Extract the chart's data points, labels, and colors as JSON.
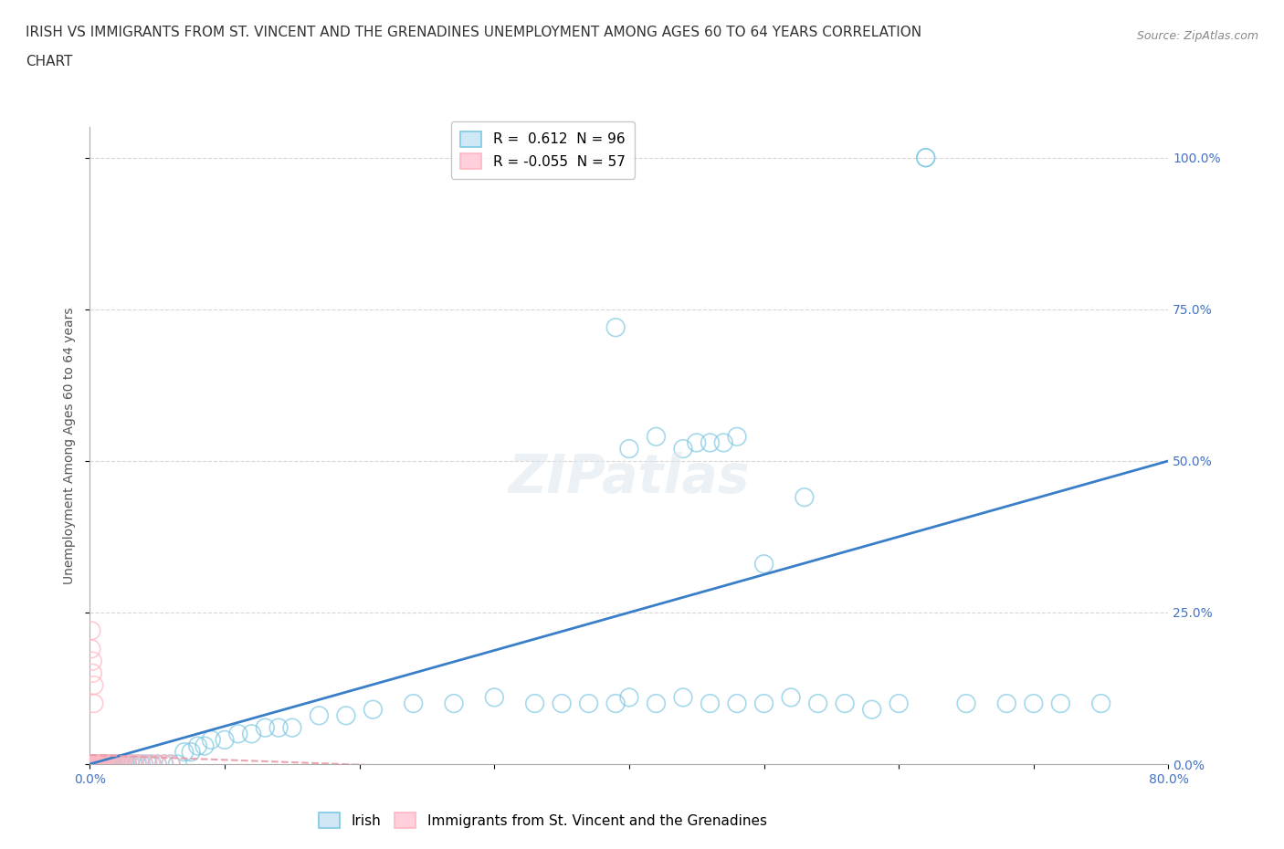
{
  "title_line1": "IRISH VS IMMIGRANTS FROM ST. VINCENT AND THE GRENADINES UNEMPLOYMENT AMONG AGES 60 TO 64 YEARS CORRELATION",
  "title_line2": "CHART",
  "source": "Source: ZipAtlas.com",
  "ylabel": "Unemployment Among Ages 60 to 64 years",
  "xlim": [
    0.0,
    0.8
  ],
  "ylim": [
    0.0,
    1.05
  ],
  "ytick_positions": [
    0.0,
    0.25,
    0.5,
    0.75,
    1.0
  ],
  "ytick_labels": [
    "0.0%",
    "25.0%",
    "50.0%",
    "75.0%",
    "100.0%"
  ],
  "xtick_positions": [
    0.0,
    0.1,
    0.2,
    0.3,
    0.4,
    0.5,
    0.6,
    0.7,
    0.8
  ],
  "xtick_labels": [
    "0.0%",
    "",
    "",
    "",
    "",
    "",
    "",
    "",
    "80.0%"
  ],
  "legend_irish_R": "0.612",
  "legend_irish_N": "96",
  "legend_svg_R": "-0.055",
  "legend_svg_N": "57",
  "blue_scatter_color": "#7ec8e3",
  "pink_scatter_color": "#ffb6c1",
  "blue_line_color": "#3a7ec8",
  "pink_line_color": "#e89aaa",
  "tick_color": "#4472c4",
  "grid_color": "#cccccc",
  "background_color": "#ffffff",
  "title_fontsize": 11,
  "axis_label_fontsize": 10,
  "tick_fontsize": 10,
  "legend_fontsize": 11,
  "source_fontsize": 9,
  "blue_line_x": [
    0.0,
    0.8
  ],
  "blue_line_y": [
    0.0,
    0.5
  ],
  "pink_line_x": [
    0.0,
    0.25
  ],
  "pink_line_y": [
    0.015,
    -0.005
  ],
  "irish_scatter_x": [
    0.0,
    0.0,
    0.001,
    0.001,
    0.001,
    0.002,
    0.002,
    0.002,
    0.003,
    0.003,
    0.004,
    0.004,
    0.005,
    0.005,
    0.006,
    0.006,
    0.007,
    0.007,
    0.008,
    0.008,
    0.009,
    0.01,
    0.01,
    0.011,
    0.012,
    0.013,
    0.014,
    0.015,
    0.016,
    0.017,
    0.018,
    0.02,
    0.022,
    0.024,
    0.026,
    0.028,
    0.03,
    0.032,
    0.035,
    0.038,
    0.04,
    0.043,
    0.046,
    0.05,
    0.055,
    0.06,
    0.065,
    0.07,
    0.075,
    0.08,
    0.085,
    0.09,
    0.1,
    0.11,
    0.12,
    0.13,
    0.14,
    0.15,
    0.17,
    0.19,
    0.21,
    0.24,
    0.27,
    0.3,
    0.33,
    0.35,
    0.37,
    0.39,
    0.4,
    0.42,
    0.44,
    0.46,
    0.48,
    0.5,
    0.52,
    0.54,
    0.56,
    0.58,
    0.6,
    0.62,
    0.62,
    0.65,
    0.68,
    0.7,
    0.72,
    0.75,
    0.4,
    0.42,
    0.44,
    0.46,
    0.48,
    0.39,
    0.45,
    0.47,
    0.5,
    0.53
  ],
  "irish_scatter_y": [
    0.0,
    0.0,
    0.0,
    0.0,
    0.0,
    0.0,
    0.0,
    0.0,
    0.0,
    0.0,
    0.0,
    0.0,
    0.0,
    0.0,
    0.0,
    0.0,
    0.0,
    0.0,
    0.0,
    0.0,
    0.0,
    0.0,
    0.0,
    0.0,
    0.0,
    0.0,
    0.0,
    0.0,
    0.0,
    0.0,
    0.0,
    0.0,
    0.0,
    0.0,
    0.0,
    0.0,
    0.0,
    0.0,
    0.0,
    0.0,
    0.0,
    0.0,
    0.0,
    0.0,
    0.0,
    0.0,
    0.0,
    0.02,
    0.02,
    0.03,
    0.03,
    0.04,
    0.04,
    0.05,
    0.05,
    0.06,
    0.06,
    0.06,
    0.08,
    0.08,
    0.09,
    0.1,
    0.1,
    0.11,
    0.1,
    0.1,
    0.1,
    0.1,
    0.11,
    0.1,
    0.11,
    0.1,
    0.1,
    0.1,
    0.11,
    0.1,
    0.1,
    0.09,
    0.1,
    1.0,
    1.0,
    0.1,
    0.1,
    0.1,
    0.1,
    0.1,
    0.52,
    0.54,
    0.52,
    0.53,
    0.54,
    0.72,
    0.53,
    0.53,
    0.33,
    0.44
  ],
  "svg_scatter_x": [
    0.0,
    0.0,
    0.0,
    0.0,
    0.0,
    0.0,
    0.001,
    0.001,
    0.001,
    0.001,
    0.001,
    0.002,
    0.002,
    0.002,
    0.002,
    0.003,
    0.003,
    0.003,
    0.003,
    0.004,
    0.004,
    0.004,
    0.005,
    0.005,
    0.005,
    0.006,
    0.006,
    0.007,
    0.007,
    0.008,
    0.008,
    0.009,
    0.01,
    0.01,
    0.011,
    0.012,
    0.013,
    0.014,
    0.015,
    0.016,
    0.017,
    0.018,
    0.019,
    0.02,
    0.021,
    0.022,
    0.023,
    0.025,
    0.027,
    0.03,
    0.033,
    0.036,
    0.04,
    0.045,
    0.05,
    0.055,
    0.06
  ],
  "svg_scatter_y": [
    0.0,
    0.0,
    0.0,
    0.0,
    0.0,
    0.0,
    0.0,
    0.0,
    0.0,
    0.0,
    0.0,
    0.0,
    0.0,
    0.0,
    0.0,
    0.0,
    0.0,
    0.0,
    0.0,
    0.0,
    0.0,
    0.0,
    0.0,
    0.0,
    0.0,
    0.0,
    0.0,
    0.0,
    0.0,
    0.0,
    0.0,
    0.0,
    0.0,
    0.0,
    0.0,
    0.0,
    0.0,
    0.0,
    0.0,
    0.0,
    0.0,
    0.0,
    0.0,
    0.0,
    0.0,
    0.0,
    0.0,
    0.0,
    0.0,
    0.0,
    0.0,
    0.0,
    0.0,
    0.0,
    0.0,
    0.0,
    0.0
  ],
  "svg_outlier_x": [
    0.001,
    0.001,
    0.002,
    0.002,
    0.003,
    0.003
  ],
  "svg_outlier_y": [
    0.22,
    0.19,
    0.17,
    0.15,
    0.13,
    0.1
  ]
}
